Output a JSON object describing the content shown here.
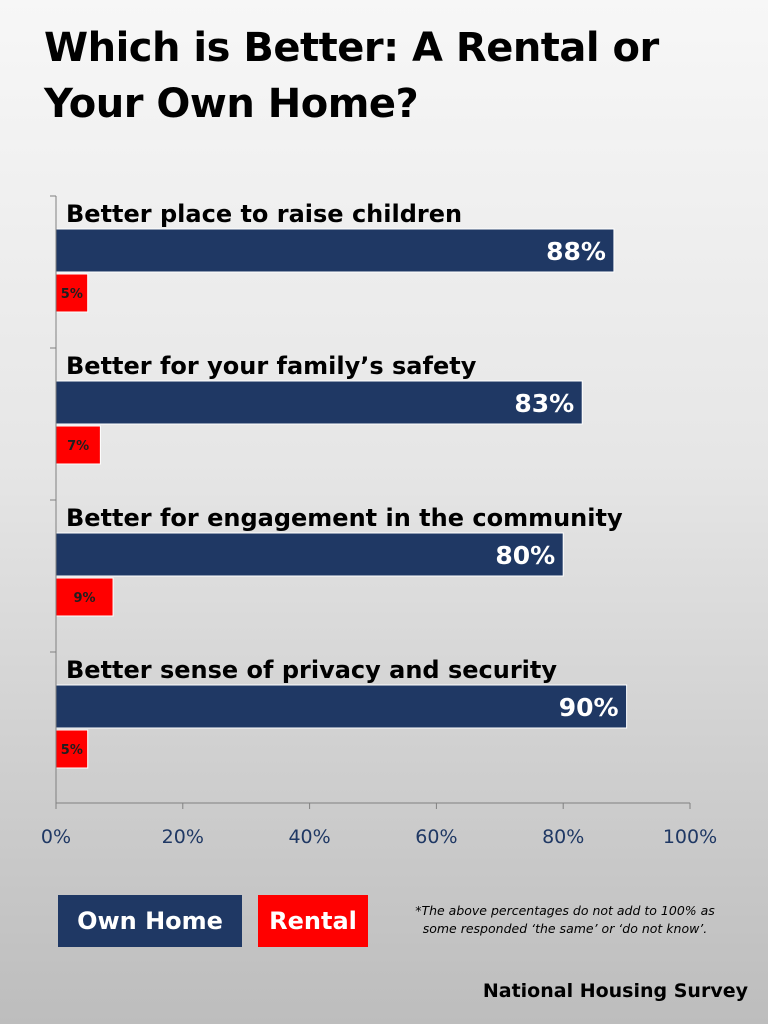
{
  "chart_data": {
    "type": "bar",
    "orientation": "horizontal",
    "title": "Which is Better: A Rental or Your Own Home?",
    "categories": [
      "Better place to raise children",
      "Better for your family’s safety",
      "Better for engagement in the community",
      "Better sense of privacy and security"
    ],
    "series": [
      {
        "name": "Own Home",
        "values": [
          88,
          83,
          80,
          90
        ],
        "color": "#1f3864",
        "labels": [
          "88%",
          "83%",
          "80%",
          "90%"
        ]
      },
      {
        "name": "Rental",
        "values": [
          5,
          7,
          9,
          5
        ],
        "color": "#ff0000",
        "labels": [
          "5%",
          "7%",
          "9%",
          "5%"
        ]
      }
    ],
    "xlim": [
      0,
      100
    ],
    "xticks": [
      "0%",
      "20%",
      "40%",
      "60%",
      "80%",
      "100%"
    ],
    "grid": false,
    "legend_position": "bottom-left"
  },
  "legend": {
    "own_home": "Own Home",
    "rental": "Rental"
  },
  "footnote": "*The above percentages do not add to 100% as\nsome responded ‘the same’ or  ‘do not know’.",
  "source": "National Housing Survey"
}
